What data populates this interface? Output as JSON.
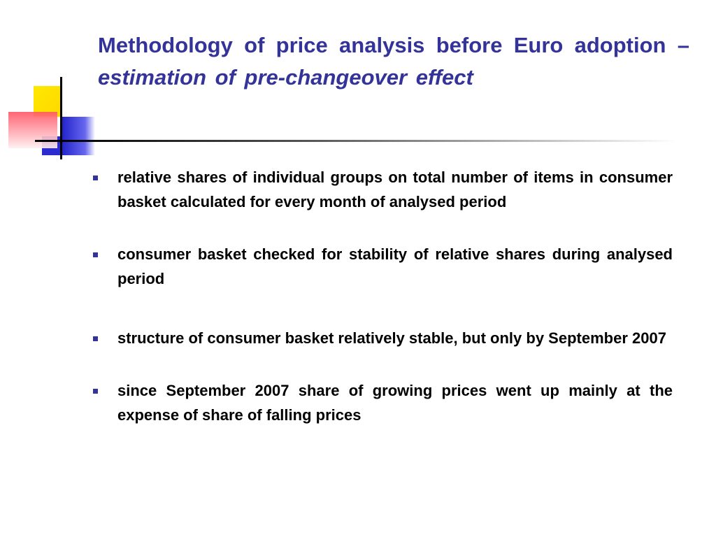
{
  "title": {
    "main": "Methodology of price analysis before Euro adoption –",
    "emphasis": "estimation of pre-changeover effect"
  },
  "bullets": [
    "relative shares of individual groups on total number of items in consumer basket calculated for every month of analysed period",
    "consumer basket checked for stability of relative shares during analysed period",
    "structure of consumer basket relatively stable, but only by September 2007",
    "since September 2007 share of growing prices went up mainly at the expense of share of falling prices"
  ]
}
